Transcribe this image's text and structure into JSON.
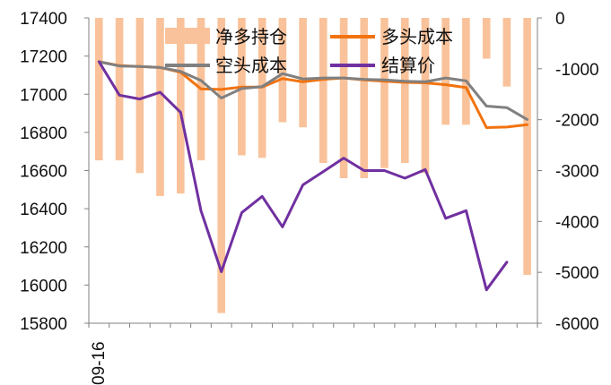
{
  "chart_data": {
    "type": "bar+line",
    "x_first_label": "09-16",
    "n_points": 22,
    "y_left": {
      "ticks": [
        "17400",
        "17200",
        "17000",
        "16800",
        "16600",
        "16400",
        "16200",
        "16000",
        "15800"
      ],
      "min": 15800,
      "max": 17400
    },
    "y_right": {
      "ticks": [
        "0",
        "-1000",
        "-2000",
        "-3000",
        "-4000",
        "-5000",
        "-6000"
      ],
      "min": -6000,
      "max": 0
    },
    "bar_series": {
      "name": "净多持仓",
      "color": "#F9C29A",
      "axis": "right",
      "values": [
        -2800,
        -2800,
        -3050,
        -3500,
        -3450,
        -2800,
        -5800,
        -2700,
        -2750,
        -2050,
        -2150,
        -2850,
        -3150,
        -3150,
        -2950,
        -2850,
        -3050,
        -2100,
        -2100,
        -800,
        -1350,
        -5050
      ]
    },
    "line_series": [
      {
        "name": "多头成本",
        "color": "#F2730F",
        "axis": "left",
        "values": [
          17170,
          17150,
          17145,
          17140,
          17115,
          17028,
          17025,
          17038,
          17038,
          17082,
          17065,
          17078,
          17085,
          17075,
          17068,
          17062,
          17060,
          17050,
          17035,
          16825,
          16828,
          16840
        ]
      },
      {
        "name": "空头成本",
        "color": "#808080",
        "axis": "left",
        "values": [
          17170,
          17148,
          17145,
          17140,
          17120,
          17072,
          16980,
          17030,
          17040,
          17108,
          17080,
          17085,
          17085,
          17078,
          17075,
          17068,
          17065,
          17085,
          17070,
          16938,
          16930,
          16868
        ]
      },
      {
        "name": "结算价",
        "color": "#7030A0",
        "axis": "left",
        "values": [
          17170,
          16995,
          16975,
          17010,
          16905,
          16390,
          16070,
          16380,
          16465,
          16305,
          16525,
          16595,
          16665,
          16600,
          16600,
          16560,
          16605,
          16350,
          16390,
          15975,
          16120,
          null
        ]
      }
    ],
    "legend": {
      "placement": "top",
      "order": [
        "净多持仓",
        "多头成本",
        "空头成本",
        "结算价"
      ]
    },
    "grid": false
  }
}
